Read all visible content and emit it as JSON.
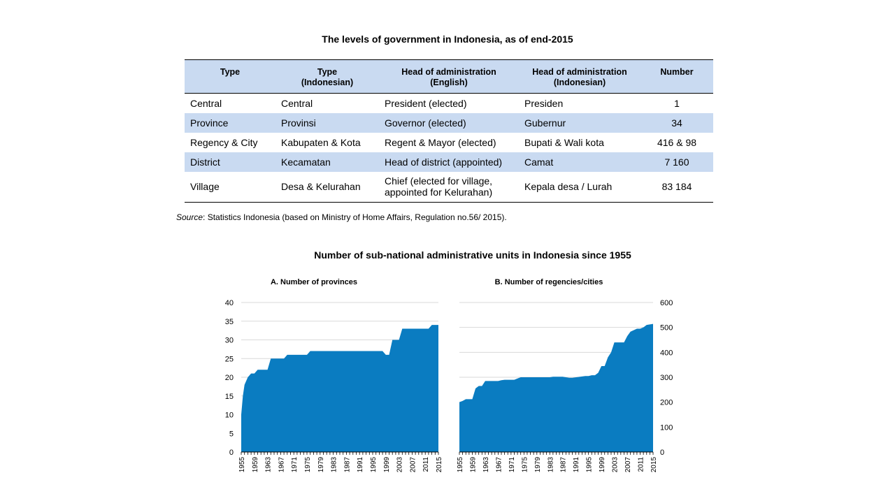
{
  "table": {
    "title": "The levels of government in Indonesia, as of end-2015",
    "headers": [
      [
        "Type",
        ""
      ],
      [
        "Type",
        "(Indonesian)"
      ],
      [
        "Head of administration",
        "(English)"
      ],
      [
        "Head of administration",
        "(Indonesian)"
      ],
      [
        "Number",
        ""
      ]
    ],
    "rows": [
      [
        "Central",
        "Central",
        "President (elected)",
        "Presiden",
        "1"
      ],
      [
        "Province",
        "Provinsi",
        "Governor (elected)",
        "Gubernur",
        "34"
      ],
      [
        "Regency & City",
        "Kabupaten & Kota",
        "Regent & Mayor (elected)",
        "Bupati & Wali kota",
        "416 & 98"
      ],
      [
        "District",
        "Kecamatan",
        "Head of district (appointed)",
        "Camat",
        "7 160"
      ],
      [
        "Village",
        "Desa & Kelurahan",
        "Chief (elected for village, appointed for Kelurahan)",
        "Kepala desa / Lurah",
        "83 184"
      ]
    ],
    "source_label": "Source",
    "source_text": ": Statistics Indonesia (based on Ministry of Home Affairs, Regulation no.56/ 2015)."
  },
  "charts_title": "Number of sub-national administrative units in Indonesia since 1955",
  "chart_data": [
    {
      "type": "area",
      "title": "A. Number of provinces",
      "xlabel": "",
      "ylabel": "",
      "ylim": [
        0,
        40
      ],
      "yticks": [
        0,
        5,
        10,
        15,
        20,
        25,
        30,
        35,
        40
      ],
      "xlim": [
        1955,
        2015
      ],
      "xticks": [
        1955,
        1959,
        1963,
        1967,
        1971,
        1975,
        1979,
        1983,
        1987,
        1991,
        1995,
        1999,
        2003,
        2007,
        2011,
        2015
      ],
      "y_axis_side": "left",
      "grid": true,
      "color": "#0a7cc1",
      "x": [
        1955,
        1955.5,
        1956,
        1957,
        1958,
        1959,
        1960,
        1961,
        1962,
        1963,
        1964,
        1965,
        1966,
        1967,
        1968,
        1969,
        1970,
        1971,
        1972,
        1973,
        1974,
        1975,
        1976,
        1995,
        1998,
        1999,
        2000,
        2001,
        2002,
        2003,
        2004,
        2011,
        2012,
        2013,
        2015
      ],
      "y": [
        10,
        15,
        18,
        20,
        21,
        21,
        22,
        22,
        22,
        22,
        25,
        25,
        25,
        25,
        25,
        26,
        26,
        26,
        26,
        26,
        26,
        26,
        27,
        27,
        27,
        26,
        26,
        30,
        30,
        30,
        33,
        33,
        33,
        34,
        34
      ]
    },
    {
      "type": "area",
      "title": "B. Number of regencies/cities",
      "xlabel": "",
      "ylabel": "",
      "ylim": [
        0,
        600
      ],
      "yticks": [
        0,
        100,
        200,
        300,
        400,
        500,
        600
      ],
      "xlim": [
        1955,
        2015
      ],
      "xticks": [
        1955,
        1959,
        1963,
        1967,
        1971,
        1975,
        1979,
        1983,
        1987,
        1991,
        1995,
        1999,
        2003,
        2007,
        2011,
        2015
      ],
      "y_axis_side": "right",
      "grid": true,
      "color": "#0a7cc1",
      "x": [
        1955,
        1956,
        1957,
        1959,
        1960,
        1961,
        1962,
        1963,
        1964,
        1966,
        1967,
        1968,
        1969,
        1972,
        1973,
        1974,
        1983,
        1984,
        1987,
        1989,
        1990,
        1994,
        1995,
        1996,
        1997,
        1998,
        1999,
        2000,
        2001,
        2002,
        2003,
        2004,
        2006,
        2007,
        2008,
        2010,
        2011,
        2012,
        2013,
        2015
      ],
      "y": [
        200,
        205,
        212,
        212,
        255,
        265,
        265,
        285,
        285,
        285,
        285,
        288,
        290,
        290,
        295,
        300,
        300,
        302,
        302,
        298,
        298,
        305,
        305,
        308,
        308,
        318,
        345,
        345,
        380,
        400,
        440,
        440,
        440,
        465,
        483,
        495,
        495,
        500,
        510,
        514
      ]
    }
  ]
}
